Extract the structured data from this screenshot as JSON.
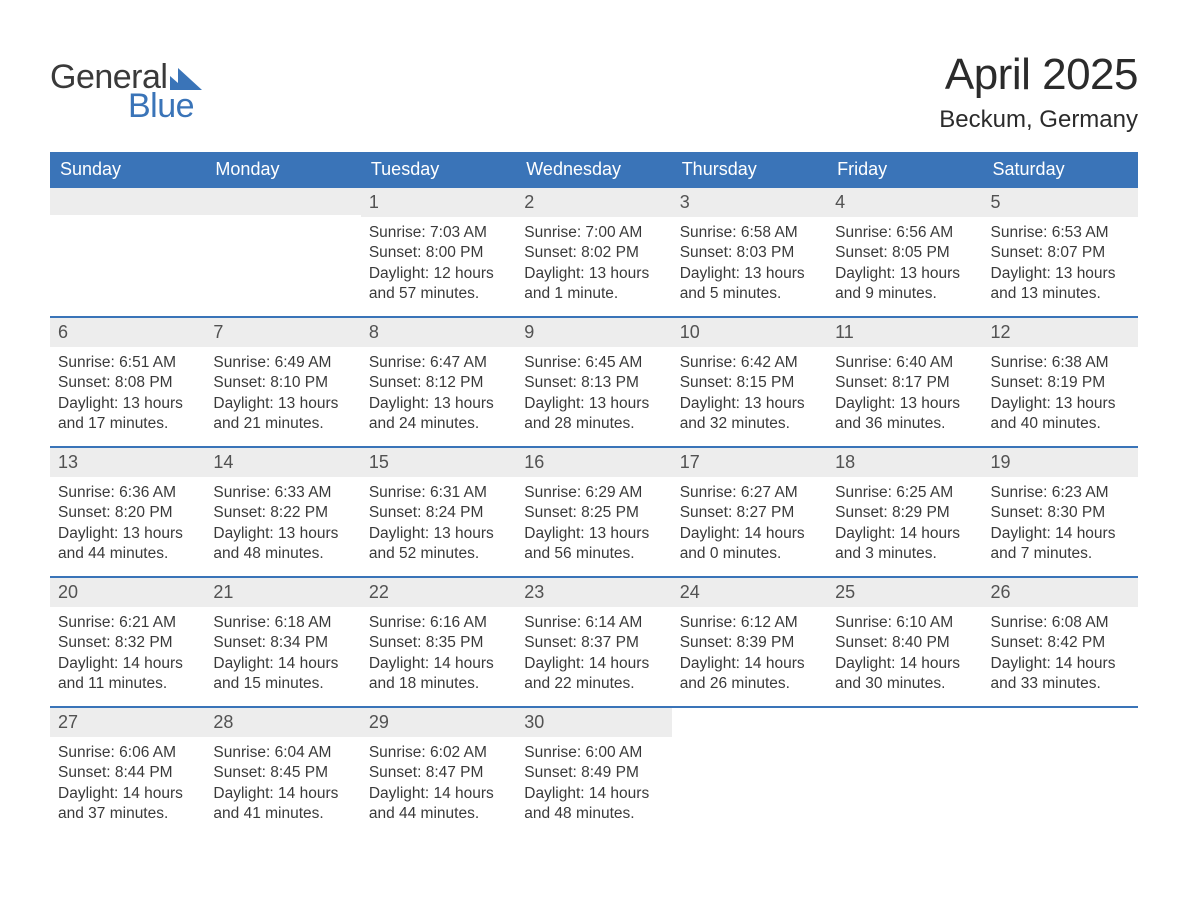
{
  "logo": {
    "text_general": "General",
    "text_blue": "Blue",
    "flag_color": "#3a74b8",
    "text_color_general": "#3a3a3a",
    "text_color_blue": "#3a74b8"
  },
  "header": {
    "month_title": "April 2025",
    "location": "Beckum, Germany"
  },
  "style": {
    "header_bg": "#3a74b8",
    "header_text": "#ffffff",
    "daynum_bg": "#ededed",
    "daynum_text": "#525252",
    "body_text": "#3a3a3a",
    "week_divider": "#3a74b8",
    "page_bg": "#ffffff",
    "weekday_fontsize": 18,
    "title_fontsize": 44,
    "location_fontsize": 24,
    "body_fontsize": 15.5
  },
  "weekdays": [
    "Sunday",
    "Monday",
    "Tuesday",
    "Wednesday",
    "Thursday",
    "Friday",
    "Saturday"
  ],
  "weeks": [
    [
      {
        "day": "",
        "lines": []
      },
      {
        "day": "",
        "lines": []
      },
      {
        "day": "1",
        "lines": [
          "Sunrise: 7:03 AM",
          "Sunset: 8:00 PM",
          "Daylight: 12 hours",
          "and 57 minutes."
        ]
      },
      {
        "day": "2",
        "lines": [
          "Sunrise: 7:00 AM",
          "Sunset: 8:02 PM",
          "Daylight: 13 hours",
          "and 1 minute."
        ]
      },
      {
        "day": "3",
        "lines": [
          "Sunrise: 6:58 AM",
          "Sunset: 8:03 PM",
          "Daylight: 13 hours",
          "and 5 minutes."
        ]
      },
      {
        "day": "4",
        "lines": [
          "Sunrise: 6:56 AM",
          "Sunset: 8:05 PM",
          "Daylight: 13 hours",
          "and 9 minutes."
        ]
      },
      {
        "day": "5",
        "lines": [
          "Sunrise: 6:53 AM",
          "Sunset: 8:07 PM",
          "Daylight: 13 hours",
          "and 13 minutes."
        ]
      }
    ],
    [
      {
        "day": "6",
        "lines": [
          "Sunrise: 6:51 AM",
          "Sunset: 8:08 PM",
          "Daylight: 13 hours",
          "and 17 minutes."
        ]
      },
      {
        "day": "7",
        "lines": [
          "Sunrise: 6:49 AM",
          "Sunset: 8:10 PM",
          "Daylight: 13 hours",
          "and 21 minutes."
        ]
      },
      {
        "day": "8",
        "lines": [
          "Sunrise: 6:47 AM",
          "Sunset: 8:12 PM",
          "Daylight: 13 hours",
          "and 24 minutes."
        ]
      },
      {
        "day": "9",
        "lines": [
          "Sunrise: 6:45 AM",
          "Sunset: 8:13 PM",
          "Daylight: 13 hours",
          "and 28 minutes."
        ]
      },
      {
        "day": "10",
        "lines": [
          "Sunrise: 6:42 AM",
          "Sunset: 8:15 PM",
          "Daylight: 13 hours",
          "and 32 minutes."
        ]
      },
      {
        "day": "11",
        "lines": [
          "Sunrise: 6:40 AM",
          "Sunset: 8:17 PM",
          "Daylight: 13 hours",
          "and 36 minutes."
        ]
      },
      {
        "day": "12",
        "lines": [
          "Sunrise: 6:38 AM",
          "Sunset: 8:19 PM",
          "Daylight: 13 hours",
          "and 40 minutes."
        ]
      }
    ],
    [
      {
        "day": "13",
        "lines": [
          "Sunrise: 6:36 AM",
          "Sunset: 8:20 PM",
          "Daylight: 13 hours",
          "and 44 minutes."
        ]
      },
      {
        "day": "14",
        "lines": [
          "Sunrise: 6:33 AM",
          "Sunset: 8:22 PM",
          "Daylight: 13 hours",
          "and 48 minutes."
        ]
      },
      {
        "day": "15",
        "lines": [
          "Sunrise: 6:31 AM",
          "Sunset: 8:24 PM",
          "Daylight: 13 hours",
          "and 52 minutes."
        ]
      },
      {
        "day": "16",
        "lines": [
          "Sunrise: 6:29 AM",
          "Sunset: 8:25 PM",
          "Daylight: 13 hours",
          "and 56 minutes."
        ]
      },
      {
        "day": "17",
        "lines": [
          "Sunrise: 6:27 AM",
          "Sunset: 8:27 PM",
          "Daylight: 14 hours",
          "and 0 minutes."
        ]
      },
      {
        "day": "18",
        "lines": [
          "Sunrise: 6:25 AM",
          "Sunset: 8:29 PM",
          "Daylight: 14 hours",
          "and 3 minutes."
        ]
      },
      {
        "day": "19",
        "lines": [
          "Sunrise: 6:23 AM",
          "Sunset: 8:30 PM",
          "Daylight: 14 hours",
          "and 7 minutes."
        ]
      }
    ],
    [
      {
        "day": "20",
        "lines": [
          "Sunrise: 6:21 AM",
          "Sunset: 8:32 PM",
          "Daylight: 14 hours",
          "and 11 minutes."
        ]
      },
      {
        "day": "21",
        "lines": [
          "Sunrise: 6:18 AM",
          "Sunset: 8:34 PM",
          "Daylight: 14 hours",
          "and 15 minutes."
        ]
      },
      {
        "day": "22",
        "lines": [
          "Sunrise: 6:16 AM",
          "Sunset: 8:35 PM",
          "Daylight: 14 hours",
          "and 18 minutes."
        ]
      },
      {
        "day": "23",
        "lines": [
          "Sunrise: 6:14 AM",
          "Sunset: 8:37 PM",
          "Daylight: 14 hours",
          "and 22 minutes."
        ]
      },
      {
        "day": "24",
        "lines": [
          "Sunrise: 6:12 AM",
          "Sunset: 8:39 PM",
          "Daylight: 14 hours",
          "and 26 minutes."
        ]
      },
      {
        "day": "25",
        "lines": [
          "Sunrise: 6:10 AM",
          "Sunset: 8:40 PM",
          "Daylight: 14 hours",
          "and 30 minutes."
        ]
      },
      {
        "day": "26",
        "lines": [
          "Sunrise: 6:08 AM",
          "Sunset: 8:42 PM",
          "Daylight: 14 hours",
          "and 33 minutes."
        ]
      }
    ],
    [
      {
        "day": "27",
        "lines": [
          "Sunrise: 6:06 AM",
          "Sunset: 8:44 PM",
          "Daylight: 14 hours",
          "and 37 minutes."
        ]
      },
      {
        "day": "28",
        "lines": [
          "Sunrise: 6:04 AM",
          "Sunset: 8:45 PM",
          "Daylight: 14 hours",
          "and 41 minutes."
        ]
      },
      {
        "day": "29",
        "lines": [
          "Sunrise: 6:02 AM",
          "Sunset: 8:47 PM",
          "Daylight: 14 hours",
          "and 44 minutes."
        ]
      },
      {
        "day": "30",
        "lines": [
          "Sunrise: 6:00 AM",
          "Sunset: 8:49 PM",
          "Daylight: 14 hours",
          "and 48 minutes."
        ]
      },
      {
        "day": "",
        "lines": []
      },
      {
        "day": "",
        "lines": []
      },
      {
        "day": "",
        "lines": []
      }
    ]
  ]
}
